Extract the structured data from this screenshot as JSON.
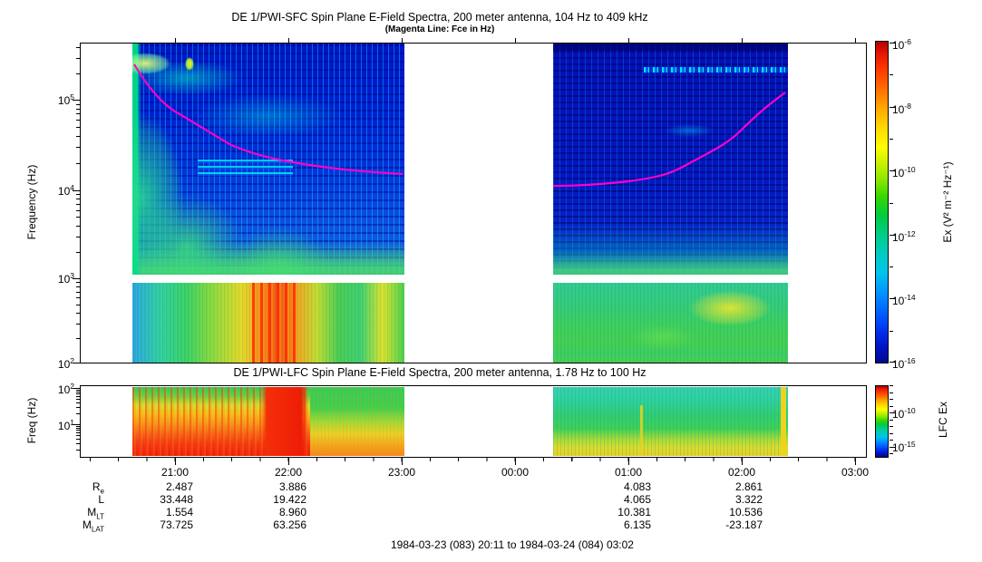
{
  "header": {
    "title_sfc": "DE 1/PWI-SFC  Spin Plane E-Field Spectra, 200 meter antenna, 104 Hz to 409 kHz",
    "subtitle_sfc": "(Magenta Line: Fce in Hz)",
    "title_lfc": "DE 1/PWI-LFC  Spin Plane E-Field Spectra, 200 meter antenna, 1.78 Hz to 100 Hz"
  },
  "sfc": {
    "ylabel": "Frequency (Hz)",
    "yticks": [
      {
        "b": "10",
        "e": "5"
      },
      {
        "b": "10",
        "e": "4"
      },
      {
        "b": "10",
        "e": "3"
      },
      {
        "b": "10",
        "e": "2"
      }
    ],
    "colorbar": {
      "label": "Ex (V² m⁻² Hz⁻¹)",
      "ticks": [
        {
          "b": "10",
          "e": "-6"
        },
        {
          "b": "10",
          "e": "-8"
        },
        {
          "b": "10",
          "e": "-10"
        },
        {
          "b": "10",
          "e": "-12"
        },
        {
          "b": "10",
          "e": "-14"
        },
        {
          "b": "10",
          "e": "-16"
        }
      ]
    }
  },
  "lfc": {
    "ylabel": "Freq (Hz)",
    "yticks": [
      {
        "b": "10",
        "e": "2"
      },
      {
        "b": "10",
        "e": "1"
      }
    ],
    "colorbar": {
      "label": "LFC Ex",
      "ticks": [
        {
          "b": "10",
          "e": "-10"
        },
        {
          "b": "10",
          "e": "-15"
        }
      ]
    }
  },
  "xaxis": {
    "labels": [
      "21:00",
      "22:00",
      "23:00",
      "00:00",
      "01:00",
      "02:00",
      "03:00"
    ]
  },
  "ephemeris": {
    "labels": [
      {
        "m": "R",
        "s": "e"
      },
      {
        "m": "L",
        "s": ""
      },
      {
        "m": "M",
        "s": "LT"
      },
      {
        "m": "M",
        "s": "LAT"
      }
    ],
    "columns": [
      "21:00",
      "22:00",
      "01:00",
      "02:00"
    ],
    "rows": [
      [
        "2.487",
        "3.886",
        "4.083",
        "2.861"
      ],
      [
        "33.448",
        "19.422",
        "4.065",
        "3.322"
      ],
      [
        "1.554",
        "8.960",
        "10.381",
        "10.536"
      ],
      [
        "73.725",
        "63.256",
        "6.135",
        "-23.187"
      ]
    ]
  },
  "footer": "1984-03-23 (083) 20:11 to 1984-03-24 (084) 03:02",
  "chart_data": [
    {
      "type": "heatmap",
      "name": "SFC spectrogram",
      "title": "DE 1/PWI-SFC  Spin Plane E-Field Spectra, 200 meter antenna, 104 Hz to 409 kHz",
      "subtitle": "(Magenta Line: Fce in Hz)",
      "ylabel": "Frequency (Hz)",
      "y_scale": "log",
      "y_range_hz": [
        100,
        409000
      ],
      "y_ticks_hz": [
        100,
        1000,
        10000,
        100000
      ],
      "x_ticks": [
        "21:00",
        "22:00",
        "23:00",
        "00:00",
        "01:00",
        "02:00",
        "03:00"
      ],
      "x_range": [
        "1984-03-23 20:11",
        "1984-03-24 03:02"
      ],
      "data_segments_ut": [
        [
          "20:39",
          "22:52"
        ],
        [
          "00:25",
          "02:25"
        ]
      ],
      "colorbar": {
        "label": "Ex (V2 m-2 Hz-1)",
        "scale": "log",
        "range": [
          1e-16,
          1e-06
        ],
        "major_ticks": [
          1e-06,
          1e-08,
          1e-10,
          1e-12,
          1e-14,
          1e-16
        ],
        "palette": "rainbow (red=high, dark blue=low)"
      },
      "overlay_line": {
        "name": "Fce",
        "color": "#ff00cc",
        "points_ut_hz": [
          [
            "20:39",
            250000
          ],
          [
            "21:00",
            80000
          ],
          [
            "21:30",
            35000
          ],
          [
            "22:00",
            22000
          ],
          [
            "22:30",
            17000
          ],
          [
            "22:52",
            15000
          ],
          [
            "00:25",
            11000
          ],
          [
            "01:00",
            13000
          ],
          [
            "01:30",
            22000
          ],
          [
            "02:00",
            49000
          ],
          [
            "02:19",
            120000
          ]
        ]
      },
      "features": [
        "white horizontal data gap near 1 kHz separating receiver bands",
        "intense green/yellow/red emission below ~1 kHz, strongest 21:30-22:15",
        "cyan patches near 2-3e5 Hz around 20:40-21:10",
        "mostly dark blue (weak) above 2 kHz with cyan speckle",
        "thin cyan band near 2e5 Hz around 01:20-02:20 in second segment"
      ]
    },
    {
      "type": "heatmap",
      "name": "LFC spectrogram",
      "title": "DE 1/PWI-LFC  Spin Plane E-Field Spectra, 200 meter antenna, 1.78 Hz to 100 Hz",
      "ylabel": "Freq (Hz)",
      "y_scale": "log",
      "y_range_hz": [
        1.78,
        100
      ],
      "y_ticks_hz": [
        10,
        100
      ],
      "x_ticks": [
        "21:00",
        "22:00",
        "23:00",
        "00:00",
        "01:00",
        "02:00",
        "03:00"
      ],
      "x_range": [
        "1984-03-23 20:11",
        "1984-03-24 03:02"
      ],
      "data_segments_ut": [
        [
          "20:39",
          "22:52"
        ],
        [
          "00:25",
          "02:25"
        ]
      ],
      "colorbar": {
        "label": "LFC Ex",
        "scale": "log",
        "major_ticks": [
          1e-10,
          1e-15
        ],
        "palette": "rainbow (red=high, dark blue=low)"
      },
      "features": [
        "segment 1: red/orange saturation at lowest frequencies, red burst 21:45-22:20 across all frequencies, green above ~30 Hz",
        "segment 2: cyan/green at high rows, yellow at lowest rows, yellow column near 02:20"
      ]
    }
  ]
}
